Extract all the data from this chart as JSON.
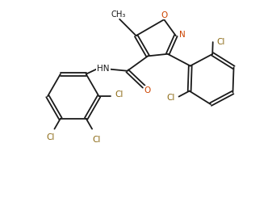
{
  "bg_color": "#ffffff",
  "bond_color": "#1a1a1a",
  "o_color": "#cc4400",
  "n_color": "#cc4400",
  "cl_color": "#8B6914",
  "lw": 1.3,
  "dbo": 0.055,
  "figw": 3.37,
  "figh": 2.51,
  "dpi": 100,
  "xlim": [
    0,
    9.5
  ],
  "ylim": [
    0,
    7.0
  ]
}
